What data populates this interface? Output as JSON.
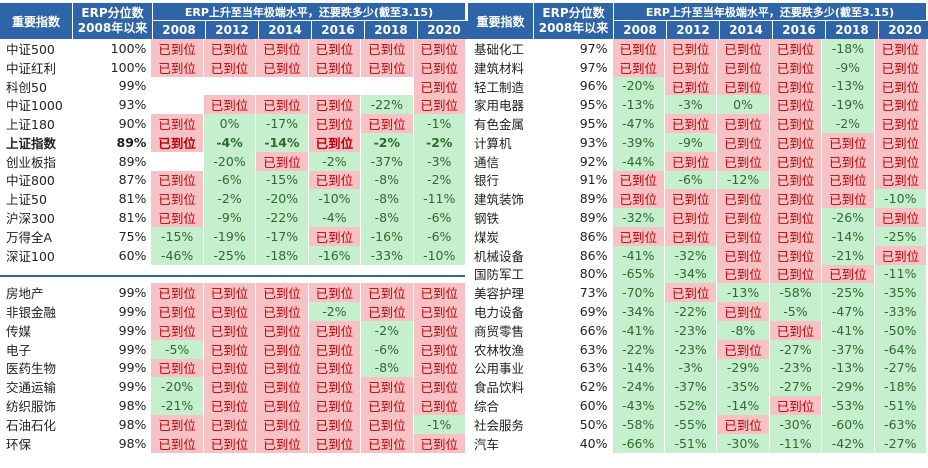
{
  "headers": {
    "name": "重要指数",
    "industry": "重要指数",
    "erp_line1": "ERP分位数",
    "erp_line2": "2008年以来",
    "span": "ERP上升至当年极端水平，还要跌多少(截至3.15)",
    "years": [
      "2008",
      "2012",
      "2014",
      "2016",
      "2018",
      "2020"
    ]
  },
  "left_top": [
    {
      "name": "中证500",
      "pct": "100%",
      "vals": [
        "已到位",
        "已到位",
        "已到位",
        "已到位",
        "已到位",
        "已到位"
      ]
    },
    {
      "name": "中证红利",
      "pct": "100%",
      "vals": [
        "已到位",
        "已到位",
        "已到位",
        "已到位",
        "已到位",
        "已到位"
      ]
    },
    {
      "name": "科创50",
      "pct": "99%",
      "vals": [
        "",
        "",
        "",
        "",
        "",
        "已到位"
      ]
    },
    {
      "name": "中证1000",
      "pct": "93%",
      "vals": [
        "",
        "已到位",
        "已到位",
        "已到位",
        "-22%",
        "已到位"
      ]
    },
    {
      "name": "上证180",
      "pct": "90%",
      "vals": [
        "已到位",
        "0%",
        "-17%",
        "已到位",
        "已到位",
        "-1%"
      ]
    },
    {
      "name": "上证指数",
      "pct": "89%",
      "vals": [
        "已到位",
        "-4%",
        "-14%",
        "已到位",
        "-2%",
        "-2%"
      ],
      "bold": true
    },
    {
      "name": "创业板指",
      "pct": "89%",
      "vals": [
        "",
        "-20%",
        "已到位",
        "-2%",
        "-37%",
        "-3%"
      ]
    },
    {
      "name": "中证800",
      "pct": "87%",
      "vals": [
        "已到位",
        "-6%",
        "-15%",
        "已到位",
        "-8%",
        "-2%"
      ]
    },
    {
      "name": "上证50",
      "pct": "81%",
      "vals": [
        "已到位",
        "-2%",
        "-20%",
        "-10%",
        "-8%",
        "-11%"
      ]
    },
    {
      "name": "沪深300",
      "pct": "81%",
      "vals": [
        "已到位",
        "-9%",
        "-22%",
        "-4%",
        "-8%",
        "-6%"
      ]
    },
    {
      "name": "万得全A",
      "pct": "75%",
      "vals": [
        "-15%",
        "-19%",
        "-17%",
        "已到位",
        "-16%",
        "-6%"
      ]
    },
    {
      "name": "深证100",
      "pct": "60%",
      "vals": [
        "-46%",
        "-25%",
        "-18%",
        "-16%",
        "-33%",
        "-10%"
      ]
    }
  ],
  "left_bottom": [
    {
      "name": "房地产",
      "pct": "99%",
      "vals": [
        "已到位",
        "已到位",
        "已到位",
        "已到位",
        "已到位",
        "已到位"
      ]
    },
    {
      "name": "非银金融",
      "pct": "99%",
      "vals": [
        "已到位",
        "已到位",
        "已到位",
        "-2%",
        "已到位",
        "已到位"
      ]
    },
    {
      "name": "传媒",
      "pct": "99%",
      "vals": [
        "已到位",
        "已到位",
        "已到位",
        "已到位",
        "-2%",
        "已到位"
      ]
    },
    {
      "name": "电子",
      "pct": "99%",
      "vals": [
        "-5%",
        "已到位",
        "已到位",
        "已到位",
        "-6%",
        "已到位"
      ]
    },
    {
      "name": "医药生物",
      "pct": "99%",
      "vals": [
        "已到位",
        "已到位",
        "已到位",
        "已到位",
        "-8%",
        "已到位"
      ]
    },
    {
      "name": "交通运输",
      "pct": "99%",
      "vals": [
        "-20%",
        "已到位",
        "已到位",
        "已到位",
        "已到位",
        "已到位"
      ]
    },
    {
      "name": "纺织服饰",
      "pct": "98%",
      "vals": [
        "-21%",
        "已到位",
        "已到位",
        "已到位",
        "已到位",
        "已到位"
      ]
    },
    {
      "name": "石油石化",
      "pct": "98%",
      "vals": [
        "已到位",
        "已到位",
        "已到位",
        "已到位",
        "已到位",
        "-1%"
      ]
    },
    {
      "name": "环保",
      "pct": "98%",
      "vals": [
        "已到位",
        "已到位",
        "已到位",
        "已到位",
        "已到位",
        "已到位"
      ]
    }
  ],
  "right": [
    {
      "name": "基础化工",
      "pct": "97%",
      "vals": [
        "已到位",
        "已到位",
        "已到位",
        "已到位",
        "-18%",
        "已到位"
      ]
    },
    {
      "name": "建筑材料",
      "pct": "97%",
      "vals": [
        "已到位",
        "已到位",
        "已到位",
        "已到位",
        "-9%",
        "已到位"
      ]
    },
    {
      "name": "轻工制造",
      "pct": "96%",
      "vals": [
        "-20%",
        "已到位",
        "已到位",
        "已到位",
        "-13%",
        "已到位"
      ]
    },
    {
      "name": "家用电器",
      "pct": "95%",
      "vals": [
        "-13%",
        "-3%",
        "0%",
        "已到位",
        "-19%",
        "已到位"
      ]
    },
    {
      "name": "有色金属",
      "pct": "95%",
      "vals": [
        "-47%",
        "已到位",
        "已到位",
        "已到位",
        "-2%",
        "已到位"
      ]
    },
    {
      "name": "计算机",
      "pct": "93%",
      "vals": [
        "-39%",
        "-9%",
        "已到位",
        "已到位",
        "已到位",
        "已到位"
      ]
    },
    {
      "name": "通信",
      "pct": "92%",
      "vals": [
        "-44%",
        "已到位",
        "已到位",
        "已到位",
        "已到位",
        "已到位"
      ]
    },
    {
      "name": "银行",
      "pct": "91%",
      "vals": [
        "已到位",
        "-6%",
        "-12%",
        "已到位",
        "已到位",
        "已到位"
      ]
    },
    {
      "name": "建筑装饰",
      "pct": "89%",
      "vals": [
        "已到位",
        "已到位",
        "已到位",
        "已到位",
        "已到位",
        "-10%"
      ]
    },
    {
      "name": "钢铁",
      "pct": "89%",
      "vals": [
        "-32%",
        "已到位",
        "已到位",
        "已到位",
        "-26%",
        "已到位"
      ]
    },
    {
      "name": "煤炭",
      "pct": "86%",
      "vals": [
        "已到位",
        "已到位",
        "已到位",
        "已到位",
        "-14%",
        "-25%"
      ]
    },
    {
      "name": "机械设备",
      "pct": "86%",
      "vals": [
        "-41%",
        "-32%",
        "已到位",
        "已到位",
        "-21%",
        "已到位"
      ]
    },
    {
      "name": "国防军工",
      "pct": "80%",
      "vals": [
        "-65%",
        "-34%",
        "已到位",
        "已到位",
        "已到位",
        "-11%"
      ]
    },
    {
      "name": "美容护理",
      "pct": "73%",
      "vals": [
        "-70%",
        "已到位",
        "-13%",
        "-58%",
        "-25%",
        "-35%"
      ]
    },
    {
      "name": "电力设备",
      "pct": "69%",
      "vals": [
        "-34%",
        "-22%",
        "已到位",
        "-5%",
        "-47%",
        "-33%"
      ]
    },
    {
      "name": "商贸零售",
      "pct": "66%",
      "vals": [
        "-41%",
        "-23%",
        "-8%",
        "已到位",
        "-41%",
        "-50%"
      ]
    },
    {
      "name": "农林牧渔",
      "pct": "63%",
      "vals": [
        "-22%",
        "-23%",
        "已到位",
        "-27%",
        "-37%",
        "-64%"
      ]
    },
    {
      "name": "公用事业",
      "pct": "63%",
      "vals": [
        "-14%",
        "-3%",
        "-29%",
        "-23%",
        "-13%",
        "-27%"
      ]
    },
    {
      "name": "食品饮料",
      "pct": "62%",
      "vals": [
        "-24%",
        "-37%",
        "-35%",
        "-27%",
        "-29%",
        "-18%"
      ]
    },
    {
      "name": "综合",
      "pct": "60%",
      "vals": [
        "-43%",
        "-52%",
        "-14%",
        "已到位",
        "-53%",
        "-51%"
      ]
    },
    {
      "name": "社会服务",
      "pct": "50%",
      "vals": [
        "-58%",
        "-55%",
        "已到位",
        "-30%",
        "-60%",
        "-63%"
      ]
    },
    {
      "name": "汽车",
      "pct": "40%",
      "vals": [
        "-66%",
        "-51%",
        "-30%",
        "-11%",
        "-42%",
        "-27%"
      ]
    }
  ]
}
